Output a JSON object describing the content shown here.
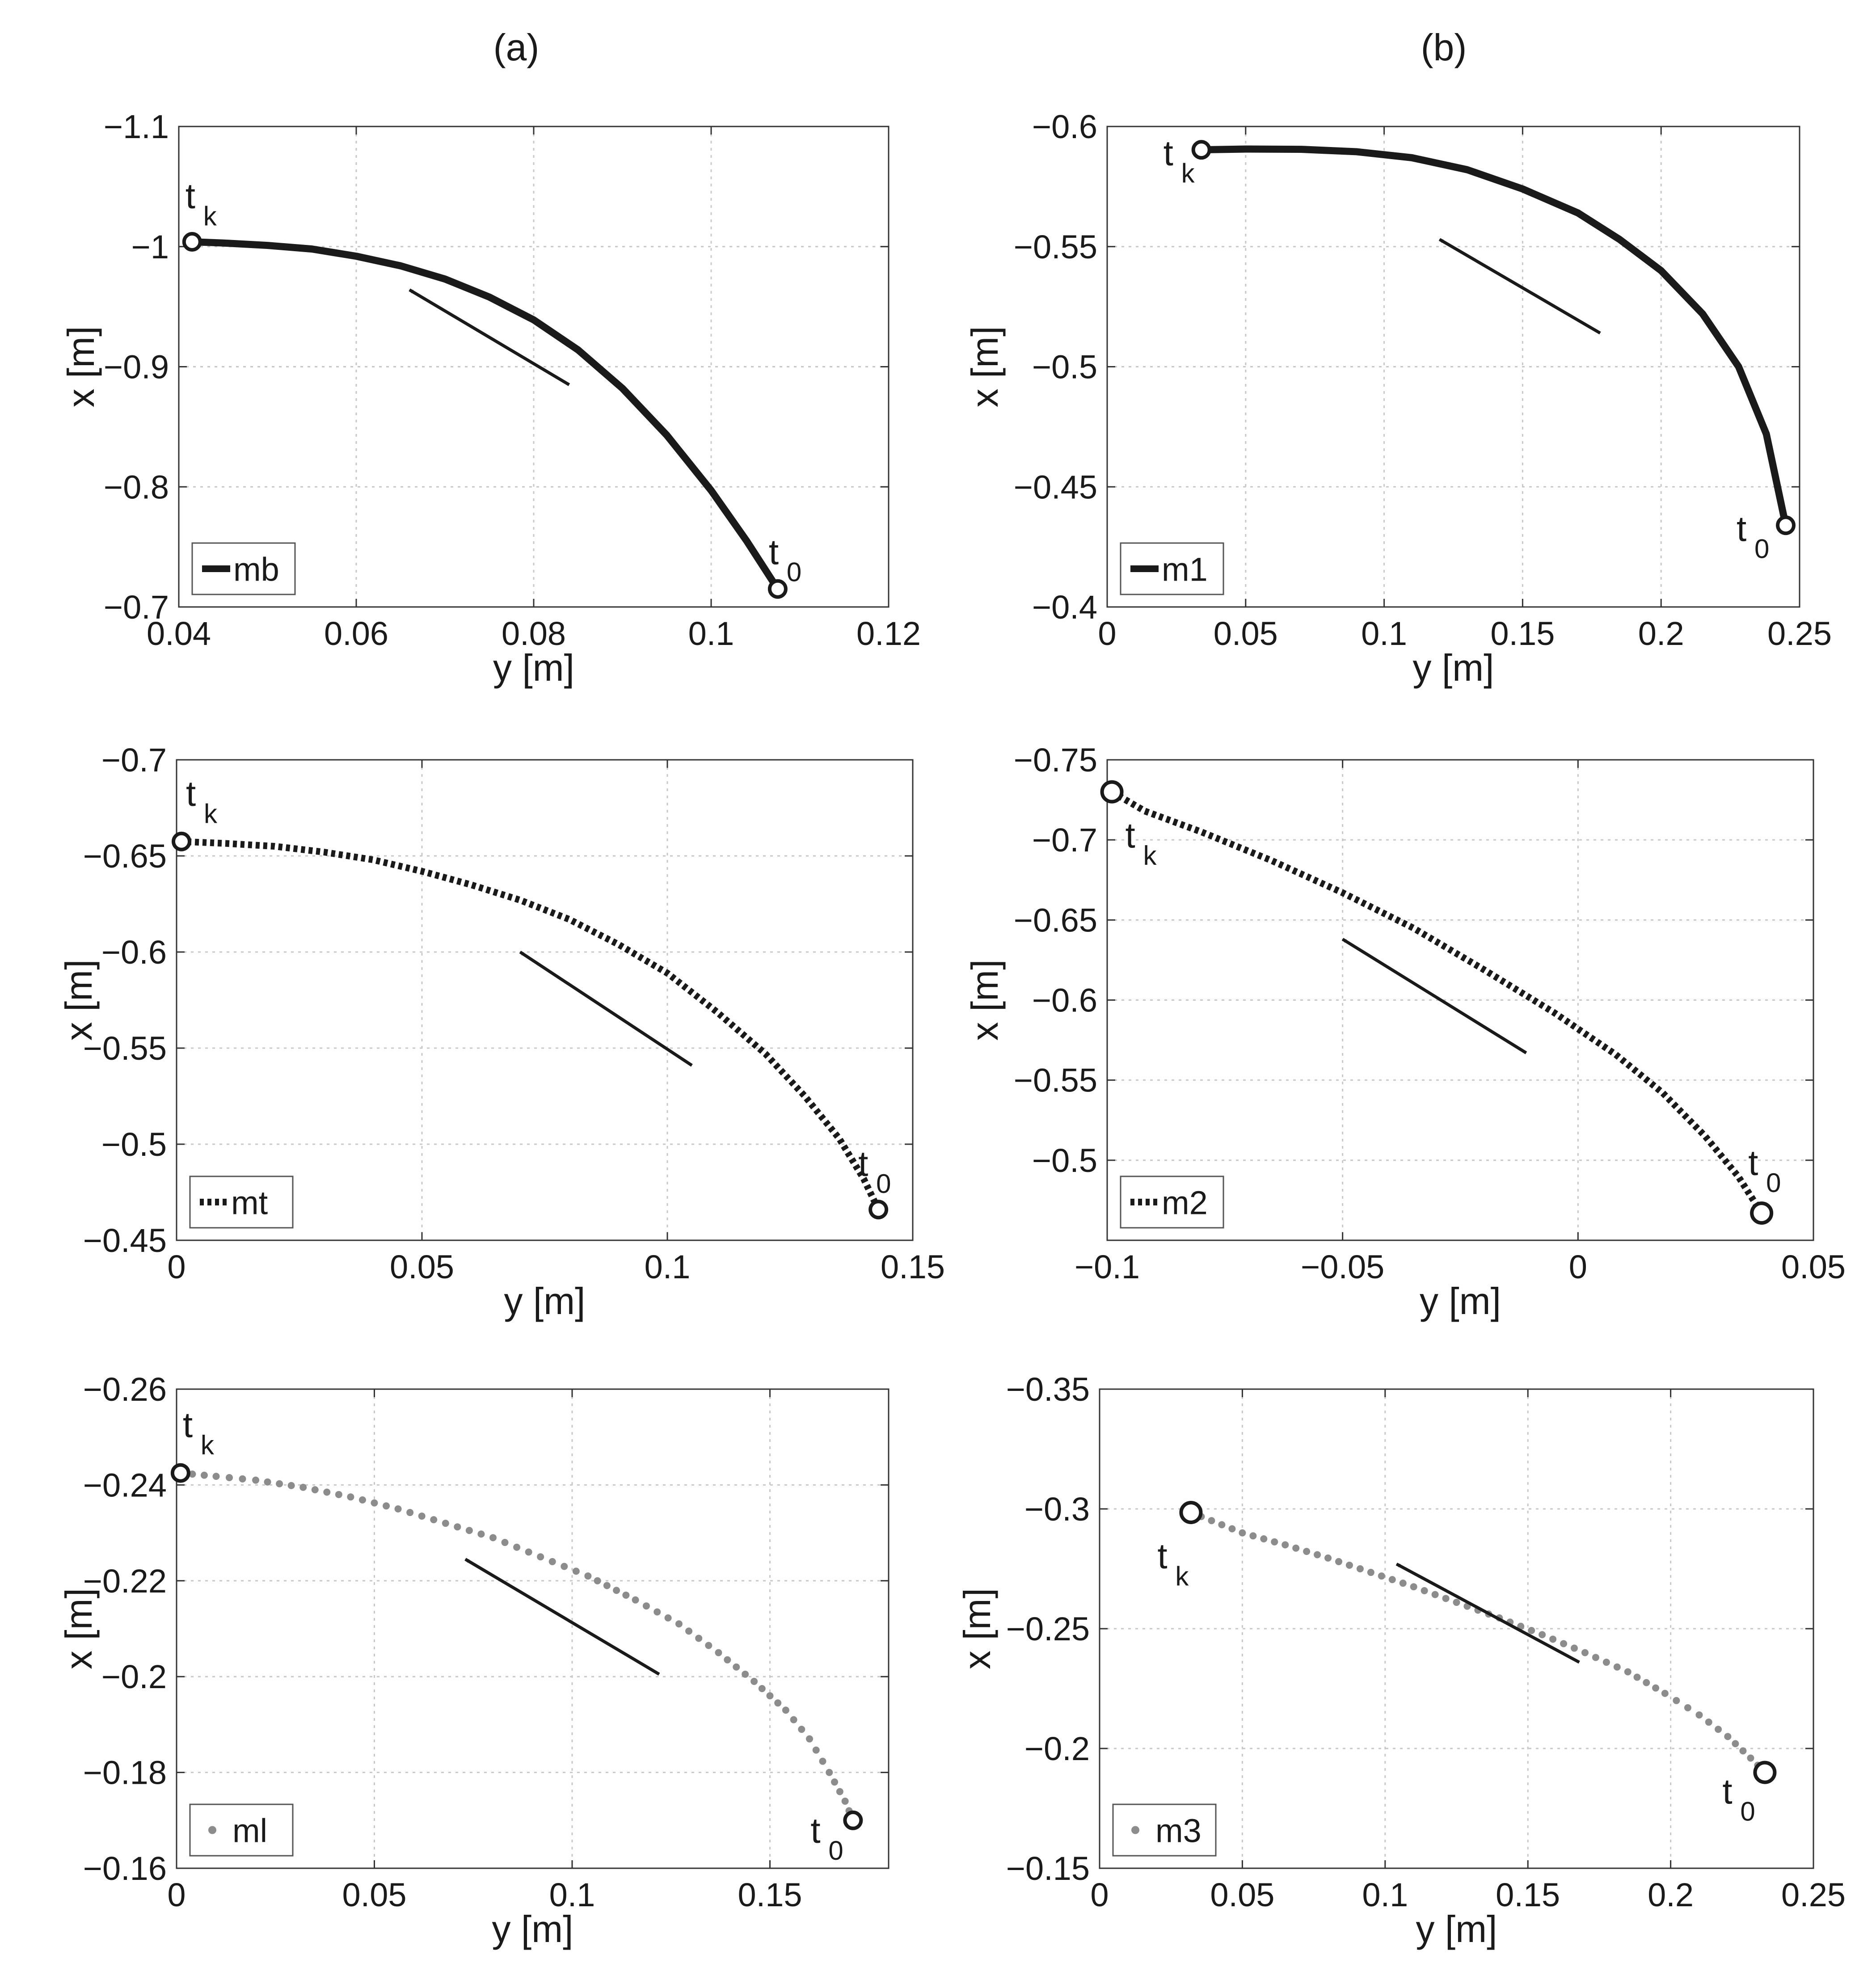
{
  "columns": [
    "(a)",
    "(b)"
  ],
  "chart_data": [
    {
      "type": "line",
      "col": 0,
      "row": 0,
      "style": "solid",
      "xlabel": "y [m]",
      "ylabel": "x [m]",
      "xlim": [
        0.04,
        0.12
      ],
      "ylim": [
        -0.7,
        -1.1
      ],
      "xticks": [
        0.04,
        0.06,
        0.08,
        0.1,
        0.12
      ],
      "xtick_labels": [
        "0.04",
        "0.06",
        "0.08",
        "0.1",
        "0.12"
      ],
      "yticks": [
        -1.1,
        -1.0,
        -0.9,
        -0.8,
        -0.7
      ],
      "ytick_labels": [
        "−1.1",
        "−1",
        "−0.9",
        "−0.8",
        "−0.7"
      ],
      "grid": true,
      "legend": "bottom-left",
      "series": [
        {
          "name": "mb",
          "color": "#1a1a1a",
          "x": [
            0.1075,
            0.104,
            0.1,
            0.095,
            0.09,
            0.085,
            0.08,
            0.075,
            0.07,
            0.065,
            0.06,
            0.055,
            0.05,
            0.045,
            0.0415
          ],
          "y": [
            -0.715,
            -0.755,
            -0.797,
            -0.843,
            -0.882,
            -0.914,
            -0.939,
            -0.958,
            -0.973,
            -0.984,
            -0.992,
            -0.998,
            -1.001,
            -1.003,
            -1.004
          ]
        }
      ],
      "arrow": {
        "from": [
          0.084,
          -0.885
        ],
        "to": [
          0.066,
          -0.964
        ]
      },
      "start": {
        "label": "t",
        "sub": "0",
        "x": 0.1075,
        "y": -0.715
      },
      "end": {
        "label": "t",
        "sub": "k",
        "x": 0.0415,
        "y": -1.004
      }
    },
    {
      "type": "line",
      "col": 1,
      "row": 0,
      "style": "solid",
      "xlabel": "y [m]",
      "ylabel": "x [m]",
      "xlim": [
        0,
        0.25
      ],
      "ylim": [
        -0.4,
        -0.6
      ],
      "xticks": [
        0,
        0.05,
        0.1,
        0.15,
        0.2,
        0.25
      ],
      "xtick_labels": [
        "0",
        "0.05",
        "0.1",
        "0.15",
        "0.2",
        "0.25"
      ],
      "yticks": [
        -0.6,
        -0.55,
        -0.5,
        -0.45,
        -0.4
      ],
      "ytick_labels": [
        "−0.6",
        "−0.55",
        "−0.5",
        "−0.45",
        "−0.4"
      ],
      "grid": true,
      "legend": "bottom-left",
      "series": [
        {
          "name": "m1",
          "color": "#1a1a1a",
          "x": [
            0.245,
            0.238,
            0.228,
            0.215,
            0.2,
            0.185,
            0.17,
            0.15,
            0.13,
            0.11,
            0.09,
            0.07,
            0.05,
            0.034
          ],
          "y": [
            -0.434,
            -0.472,
            -0.5,
            -0.522,
            -0.54,
            -0.553,
            -0.564,
            -0.574,
            -0.582,
            -0.587,
            -0.5895,
            -0.5905,
            -0.5906,
            -0.5903
          ]
        }
      ],
      "arrow": {
        "from": [
          0.178,
          -0.514
        ],
        "to": [
          0.12,
          -0.553
        ]
      },
      "start": {
        "label": "t",
        "sub": "0",
        "x": 0.245,
        "y": -0.434
      },
      "end": {
        "label": "t",
        "sub": "k",
        "x": 0.034,
        "y": -0.5903
      }
    },
    {
      "type": "line",
      "col": 0,
      "row": 1,
      "style": "dotted",
      "xlabel": "y [m]",
      "ylabel": "x [m]",
      "xlim": [
        0,
        0.15
      ],
      "ylim": [
        -0.45,
        -0.7
      ],
      "xticks": [
        0,
        0.05,
        0.1,
        0.15
      ],
      "xtick_labels": [
        "0",
        "0.05",
        "0.1",
        "0.15"
      ],
      "yticks": [
        -0.7,
        -0.65,
        -0.6,
        -0.55,
        -0.5,
        -0.45
      ],
      "ytick_labels": [
        "−0.7",
        "−0.65",
        "−0.6",
        "−0.55",
        "−0.5",
        "−0.45"
      ],
      "grid": true,
      "legend": "bottom-left",
      "series": [
        {
          "name": "mt",
          "color": "#1a1a1a",
          "x": [
            0.143,
            0.14,
            0.135,
            0.128,
            0.12,
            0.11,
            0.1,
            0.09,
            0.08,
            0.07,
            0.06,
            0.05,
            0.04,
            0.03,
            0.02,
            0.01,
            0.001
          ],
          "y": [
            -0.466,
            -0.482,
            -0.503,
            -0.525,
            -0.547,
            -0.569,
            -0.589,
            -0.604,
            -0.617,
            -0.627,
            -0.635,
            -0.642,
            -0.648,
            -0.652,
            -0.655,
            -0.6565,
            -0.6575
          ]
        }
      ],
      "arrow": {
        "from": [
          0.105,
          -0.541
        ],
        "to": [
          0.07,
          -0.6
        ]
      },
      "start": {
        "label": "t",
        "sub": "0",
        "x": 0.143,
        "y": -0.466
      },
      "end": {
        "label": "t",
        "sub": "k",
        "x": 0.001,
        "y": -0.6575
      }
    },
    {
      "type": "line",
      "col": 1,
      "row": 1,
      "style": "dotted",
      "xlabel": "y [m]",
      "ylabel": "x [m]",
      "xlim": [
        -0.1,
        0.05
      ],
      "ylim": [
        -0.45,
        -0.75
      ],
      "xticks": [
        -0.1,
        -0.05,
        0,
        0.05
      ],
      "xtick_labels": [
        "−0.1",
        "−0.05",
        "0",
        "0.05"
      ],
      "yticks": [
        -0.75,
        -0.7,
        -0.65,
        -0.6,
        -0.55,
        -0.5
      ],
      "ytick_labels": [
        "−0.75",
        "−0.7",
        "−0.65",
        "−0.6",
        "−0.55",
        "−0.5"
      ],
      "grid": true,
      "legend": "bottom-left",
      "series": [
        {
          "name": "m2",
          "color": "#1a1a1a",
          "x": [
            0.039,
            0.034,
            0.027,
            0.018,
            0.008,
            -0.005,
            -0.02,
            -0.035,
            -0.05,
            -0.065,
            -0.08,
            -0.092,
            -0.099
          ],
          "y": [
            -0.467,
            -0.49,
            -0.515,
            -0.542,
            -0.566,
            -0.592,
            -0.619,
            -0.645,
            -0.667,
            -0.687,
            -0.705,
            -0.718,
            -0.73
          ]
        }
      ],
      "arrow": {
        "from": [
          -0.011,
          -0.567
        ],
        "to": [
          -0.05,
          -0.638
        ]
      },
      "start": {
        "label": "t",
        "sub": "0",
        "x": 0.039,
        "y": -0.467
      },
      "end": {
        "label": "t",
        "sub": "k",
        "x": -0.099,
        "y": -0.73
      }
    },
    {
      "type": "scatter",
      "col": 0,
      "row": 2,
      "style": "dots",
      "xlabel": "y [m]",
      "ylabel": "x [m]",
      "xlim": [
        0,
        0.18
      ],
      "ylim": [
        -0.16,
        -0.26
      ],
      "xticks": [
        0,
        0.05,
        0.1,
        0.15
      ],
      "xtick_labels": [
        "0",
        "0.05",
        "0.1",
        "0.15"
      ],
      "yticks": [
        -0.26,
        -0.24,
        -0.22,
        -0.2,
        -0.18,
        -0.16
      ],
      "ytick_labels": [
        "−0.26",
        "−0.24",
        "−0.22",
        "−0.2",
        "−0.18",
        "−0.16"
      ],
      "grid": true,
      "legend": "bottom-left",
      "series": [
        {
          "name": "ml",
          "color": "#8c8c8c",
          "x": [
            0.171,
            0.169,
            0.165,
            0.16,
            0.154,
            0.146,
            0.137,
            0.127,
            0.116,
            0.104,
            0.092,
            0.08,
            0.068,
            0.056,
            0.044,
            0.032,
            0.02,
            0.01,
            0.001
          ],
          "y": [
            -0.17,
            -0.174,
            -0.18,
            -0.187,
            -0.193,
            -0.199,
            -0.205,
            -0.211,
            -0.216,
            -0.221,
            -0.225,
            -0.229,
            -0.232,
            -0.235,
            -0.2375,
            -0.2395,
            -0.241,
            -0.2418,
            -0.2425
          ]
        }
      ],
      "arrow": {
        "from": [
          0.122,
          -0.2005
        ],
        "to": [
          0.073,
          -0.2245
        ]
      },
      "start": {
        "label": "t",
        "sub": "0",
        "x": 0.171,
        "y": -0.17
      },
      "end": {
        "label": "t",
        "sub": "k",
        "x": 0.001,
        "y": -0.2425
      }
    },
    {
      "type": "scatter",
      "col": 1,
      "row": 2,
      "style": "dots",
      "xlabel": "y [m]",
      "ylabel": "x [m]",
      "xlim": [
        0,
        0.25
      ],
      "ylim": [
        -0.15,
        -0.35
      ],
      "xticks": [
        0,
        0.05,
        0.1,
        0.15,
        0.2,
        0.25
      ],
      "xtick_labels": [
        "0",
        "0.05",
        "0.1",
        "0.15",
        "0.2",
        "0.25"
      ],
      "yticks": [
        -0.35,
        -0.3,
        -0.25,
        -0.2,
        -0.15
      ],
      "ytick_labels": [
        "−0.35",
        "−0.3",
        "−0.25",
        "−0.2",
        "−0.15"
      ],
      "grid": true,
      "legend": "bottom-left",
      "series": [
        {
          "name": "m3",
          "color": "#8c8c8c",
          "x": [
            0.233,
            0.228,
            0.22,
            0.21,
            0.198,
            0.185,
            0.17,
            0.155,
            0.14,
            0.125,
            0.11,
            0.095,
            0.08,
            0.065,
            0.05,
            0.032
          ],
          "y": [
            -0.19,
            -0.196,
            -0.205,
            -0.214,
            -0.223,
            -0.232,
            -0.24,
            -0.2475,
            -0.2545,
            -0.261,
            -0.2675,
            -0.2735,
            -0.2795,
            -0.285,
            -0.29,
            -0.2985
          ]
        }
      ],
      "arrow": {
        "from": [
          0.168,
          -0.236
        ],
        "to": [
          0.104,
          -0.277
        ]
      },
      "start": {
        "label": "t",
        "sub": "0",
        "x": 0.233,
        "y": -0.19
      },
      "end": {
        "label": "t",
        "sub": "k",
        "x": 0.032,
        "y": -0.2985
      }
    }
  ]
}
